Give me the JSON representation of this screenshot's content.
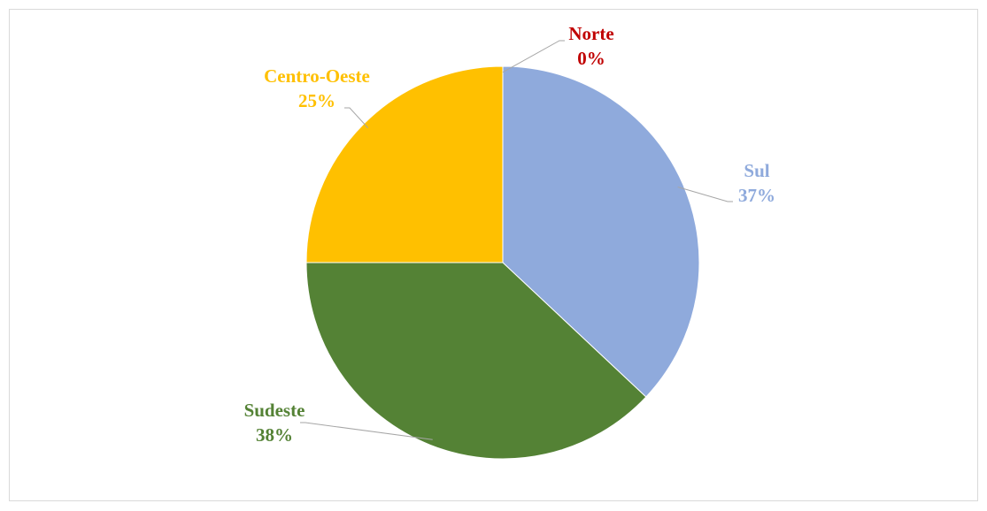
{
  "chart_data": {
    "type": "pie",
    "categories": [
      "Sul",
      "Sudeste",
      "Centro-Oeste",
      "Norte"
    ],
    "values": [
      37,
      38,
      25,
      0
    ],
    "value_labels": [
      "37%",
      "38%",
      "25%",
      "0%"
    ],
    "colors": [
      "#8faadc",
      "#548235",
      "#ffc000",
      "#c00000"
    ]
  }
}
